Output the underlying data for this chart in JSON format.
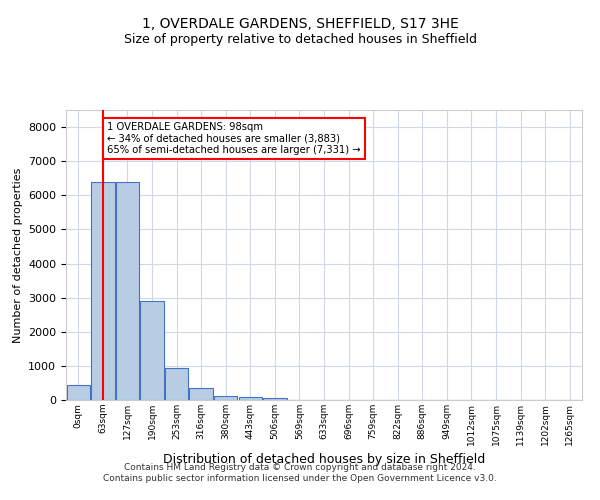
{
  "title1": "1, OVERDALE GARDENS, SHEFFIELD, S17 3HE",
  "title2": "Size of property relative to detached houses in Sheffield",
  "xlabel": "Distribution of detached houses by size in Sheffield",
  "ylabel": "Number of detached properties",
  "bin_labels": [
    "0sqm",
    "63sqm",
    "127sqm",
    "190sqm",
    "253sqm",
    "316sqm",
    "380sqm",
    "443sqm",
    "506sqm",
    "569sqm",
    "633sqm",
    "696sqm",
    "759sqm",
    "822sqm",
    "886sqm",
    "949sqm",
    "1012sqm",
    "1075sqm",
    "1139sqm",
    "1202sqm",
    "1265sqm"
  ],
  "bar_values": [
    450,
    6400,
    6400,
    2900,
    950,
    350,
    120,
    100,
    50,
    10,
    5,
    2,
    1,
    0,
    0,
    0,
    0,
    0,
    0,
    0,
    0
  ],
  "bar_color": "#b8cce4",
  "bar_edge_color": "#4472c4",
  "property_line_label": "1 OVERDALE GARDENS: 98sqm",
  "annotation_line1": "← 34% of detached houses are smaller (3,883)",
  "annotation_line2": "65% of semi-detached houses are larger (7,331) →",
  "red_line_color": "#ff0000",
  "ylim": [
    0,
    8500
  ],
  "yticks": [
    0,
    1000,
    2000,
    3000,
    4000,
    5000,
    6000,
    7000,
    8000
  ],
  "footer1": "Contains HM Land Registry data © Crown copyright and database right 2024.",
  "footer2": "Contains public sector information licensed under the Open Government Licence v3.0.",
  "bg_color": "#ffffff",
  "grid_color": "#d0d8e8"
}
